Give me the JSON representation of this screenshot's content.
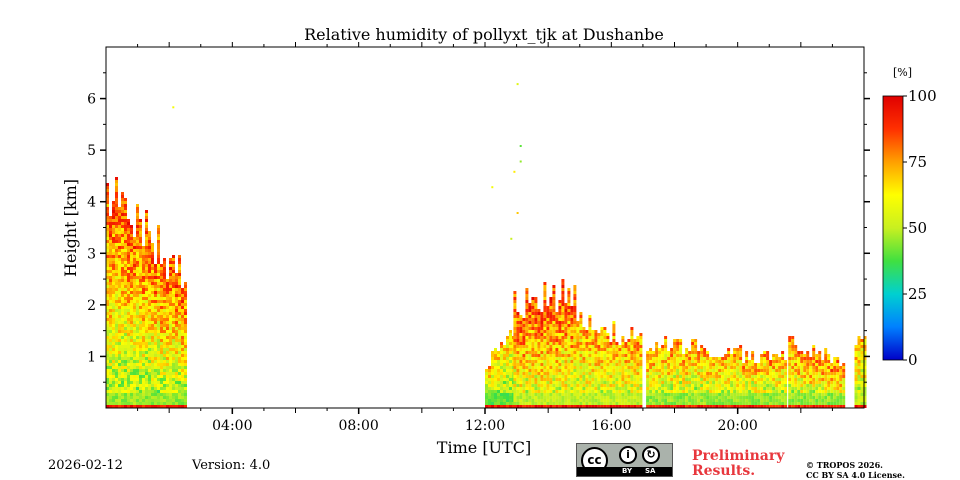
{
  "chart_data": {
    "type": "heatmap",
    "title": "Relative humidity of pollyxt_tjk at Dushanbe",
    "xlabel": "Time [UTC]",
    "ylabel": "Height [km]",
    "xlim_hours": [
      0,
      24
    ],
    "ylim_km": [
      0,
      7
    ],
    "x_ticks": [
      {
        "hour": 4,
        "label": "04:00"
      },
      {
        "hour": 8,
        "label": "08:00"
      },
      {
        "hour": 12,
        "label": "12:00"
      },
      {
        "hour": 16,
        "label": "16:00"
      },
      {
        "hour": 20,
        "label": "20:00"
      }
    ],
    "y_ticks": [
      {
        "value": 1,
        "label": "1"
      },
      {
        "value": 2,
        "label": "2"
      },
      {
        "value": 3,
        "label": "3"
      },
      {
        "value": 4,
        "label": "4"
      },
      {
        "value": 5,
        "label": "5"
      },
      {
        "value": 6,
        "label": "6"
      }
    ],
    "colorbar": {
      "unit": "[%]",
      "range": [
        0,
        100
      ],
      "ticks": [
        {
          "value": 0,
          "label": "0"
        },
        {
          "value": 25,
          "label": "25"
        },
        {
          "value": 50,
          "label": "50"
        },
        {
          "value": 75,
          "label": "75"
        },
        {
          "value": 100,
          "label": "100"
        }
      ],
      "colors": [
        "#0000c8",
        "#0080ff",
        "#00d0d0",
        "#40e040",
        "#c8f020",
        "#ffff00",
        "#ffa000",
        "#ff3000",
        "#e00000"
      ]
    },
    "data_segments": [
      {
        "start": 0.0,
        "end": 2.5,
        "top": 4.2,
        "top_end": 2.6,
        "rh_low": 45,
        "rh_high": 85
      },
      {
        "start": 12.0,
        "end": 12.9,
        "top": 0.9,
        "top_end": 1.6,
        "rh_low": 40,
        "rh_high": 70
      },
      {
        "start": 12.9,
        "end": 14.8,
        "top": 2.0,
        "top_end": 2.3,
        "rh_low": 50,
        "rh_high": 85
      },
      {
        "start": 14.8,
        "end": 16.9,
        "top": 1.8,
        "top_end": 1.3,
        "rh_low": 50,
        "rh_high": 75
      },
      {
        "start": 17.1,
        "end": 21.5,
        "top": 1.3,
        "top_end": 1.0,
        "rh_low": 45,
        "rh_high": 75
      },
      {
        "start": 21.6,
        "end": 23.4,
        "top": 1.3,
        "top_end": 0.9,
        "rh_low": 45,
        "rh_high": 80
      },
      {
        "start": 23.7,
        "end": 24.0,
        "top": 1.4,
        "top_end": 1.5,
        "rh_low": 50,
        "rh_high": 70
      }
    ],
    "gaps_hours": [
      [
        2.5,
        12.0
      ],
      [
        16.9,
        17.1
      ],
      [
        21.5,
        21.6
      ],
      [
        23.4,
        23.7
      ]
    ]
  },
  "footer": {
    "date": "2026-02-12",
    "version": "Version: 4.0",
    "preliminary_line1": "Preliminary",
    "preliminary_line2": "Results.",
    "copyright_line1": "© TROPOS 2026.",
    "copyright_line2": "CC BY SA 4.0 License.",
    "license_badge": {
      "cc": "cc",
      "by": "BY",
      "sa": "SA",
      "icons": [
        "cc-icon",
        "attribution-icon",
        "share-alike-icon"
      ]
    }
  }
}
